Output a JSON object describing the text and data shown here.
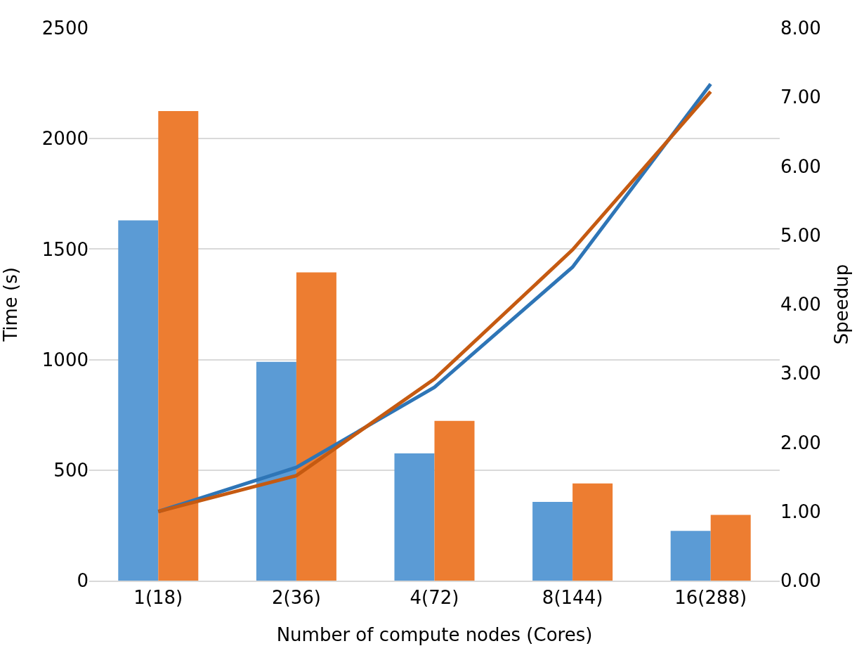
{
  "chart_data": {
    "type": "bar",
    "xlabel": "Number of compute nodes (Cores)",
    "ylabel": "Time (s)",
    "y2label": "Speedup",
    "categories": [
      "1(18)",
      "2(36)",
      "4(72)",
      "8(144)",
      "16(288)"
    ],
    "series": [
      {
        "color": "#5b9bd5",
        "values": [
          1630,
          990,
          576,
          356,
          225
        ]
      },
      {
        "color": "#ed7d31",
        "values": [
          2125,
          1395,
          723,
          440,
          297
        ]
      },
      {
        "type": "line",
        "axis": "y2",
        "color": "#2e75b6",
        "values": [
          1.0,
          1.64,
          2.8,
          4.54,
          7.19
        ]
      },
      {
        "type": "line",
        "axis": "y2",
        "color": "#c55a11",
        "values": [
          1.0,
          1.52,
          2.92,
          4.79,
          7.08
        ]
      }
    ],
    "ylim": [
      0,
      2500
    ],
    "yticks": [
      0,
      500,
      1000,
      1500,
      2000,
      2500
    ],
    "y2lim": [
      0,
      8
    ],
    "y2ticks": [
      {
        "value": 0,
        "label": "0.00"
      },
      {
        "value": 1,
        "label": "1.00"
      },
      {
        "value": 2,
        "label": "2.00"
      },
      {
        "value": 3,
        "label": "3.00"
      },
      {
        "value": 4,
        "label": "4.00"
      },
      {
        "value": 5,
        "label": "5.00"
      },
      {
        "value": 6,
        "label": "6.00"
      },
      {
        "value": 7,
        "label": "7.00"
      },
      {
        "value": 8,
        "label": "8.00"
      }
    ],
    "grid": "y",
    "marker": "none",
    "line_style": "solid"
  }
}
